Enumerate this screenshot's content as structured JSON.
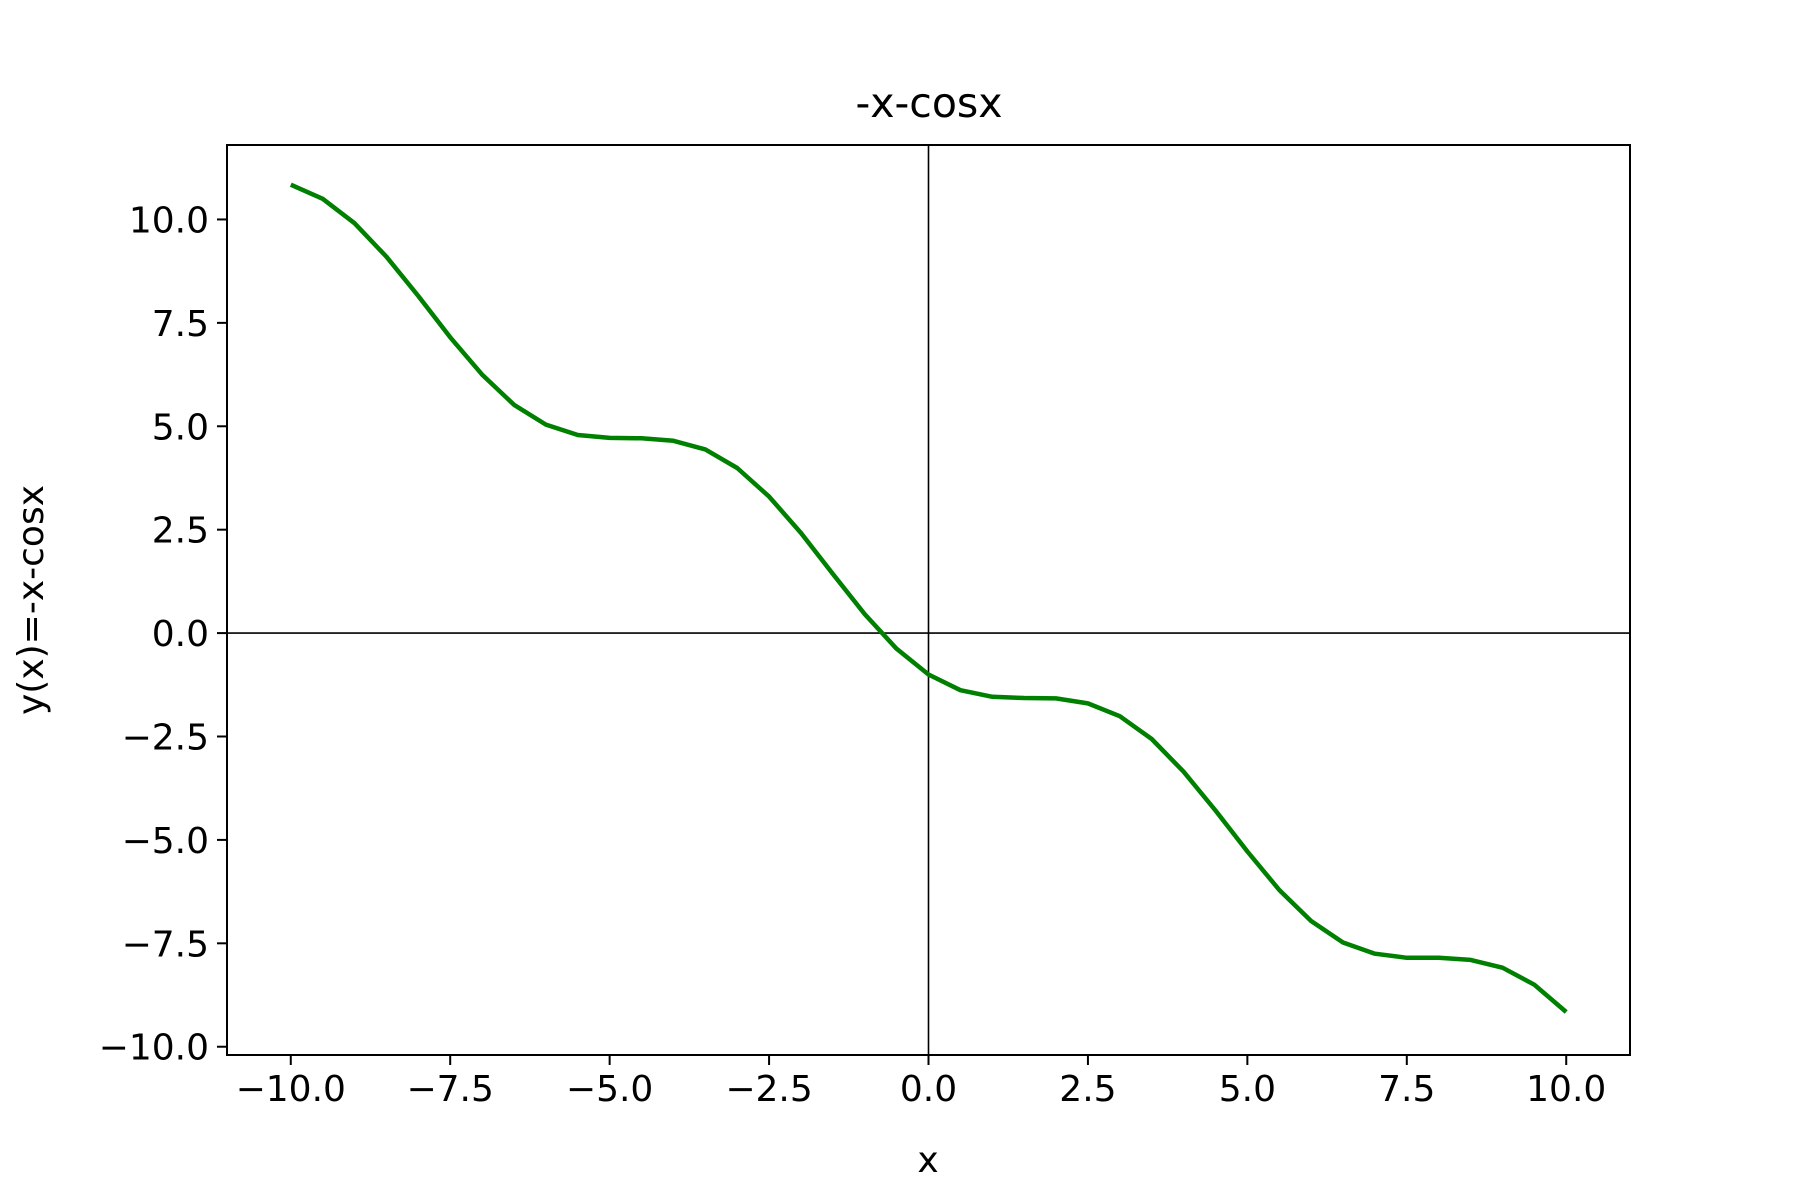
{
  "chart_data": {
    "type": "line",
    "title": "-x-cosx",
    "xlabel": "x",
    "ylabel": "y(x)=-x-cosx",
    "xlim": [
      -11,
      11
    ],
    "ylim": [
      -10.2,
      11.8
    ],
    "x_ticks": [
      -10,
      -7.5,
      -5,
      -2.5,
      0,
      2.5,
      5,
      7.5,
      10
    ],
    "x_tick_labels": [
      "−10.0",
      "−7.5",
      "−5.0",
      "−2.5",
      "0.0",
      "2.5",
      "5.0",
      "7.5",
      "10.0"
    ],
    "y_ticks": [
      10,
      7.5,
      5,
      2.5,
      0,
      -2.5,
      -5,
      -7.5,
      -10
    ],
    "y_tick_labels": [
      "10.0",
      "7.5",
      "5.0",
      "2.5",
      "0.0",
      "−2.5",
      "−5.0",
      "−7.5",
      "−10.0"
    ],
    "grid": false,
    "reference_lines": {
      "x0": 0,
      "y0": 0,
      "color": "#000000"
    },
    "series": [
      {
        "color": "#008000",
        "x": [
          -10,
          -9.5,
          -9,
          -8.5,
          -8,
          -7.5,
          -7,
          -6.5,
          -6,
          -5.5,
          -5,
          -4.5,
          -4,
          -3.5,
          -3,
          -2.5,
          -2,
          -1.5,
          -1,
          -0.5,
          0,
          0.5,
          1,
          1.5,
          2,
          2.5,
          3,
          3.5,
          4,
          4.5,
          5,
          5.5,
          6,
          6.5,
          7,
          7.5,
          8,
          8.5,
          9,
          9.5,
          10
        ],
        "y": [
          10.84,
          10.5,
          9.91,
          9.1,
          8.15,
          7.15,
          6.25,
          5.52,
          5.04,
          4.79,
          4.72,
          4.71,
          4.65,
          4.44,
          3.99,
          3.3,
          2.42,
          1.43,
          0.46,
          -0.38,
          -1.0,
          -1.38,
          -1.54,
          -1.57,
          -1.58,
          -1.7,
          -2.01,
          -2.56,
          -3.35,
          -4.29,
          -5.28,
          -6.21,
          -6.96,
          -7.48,
          -7.75,
          -7.85,
          -7.85,
          -7.9,
          -8.09,
          -8.5,
          -9.16
        ]
      }
    ]
  }
}
